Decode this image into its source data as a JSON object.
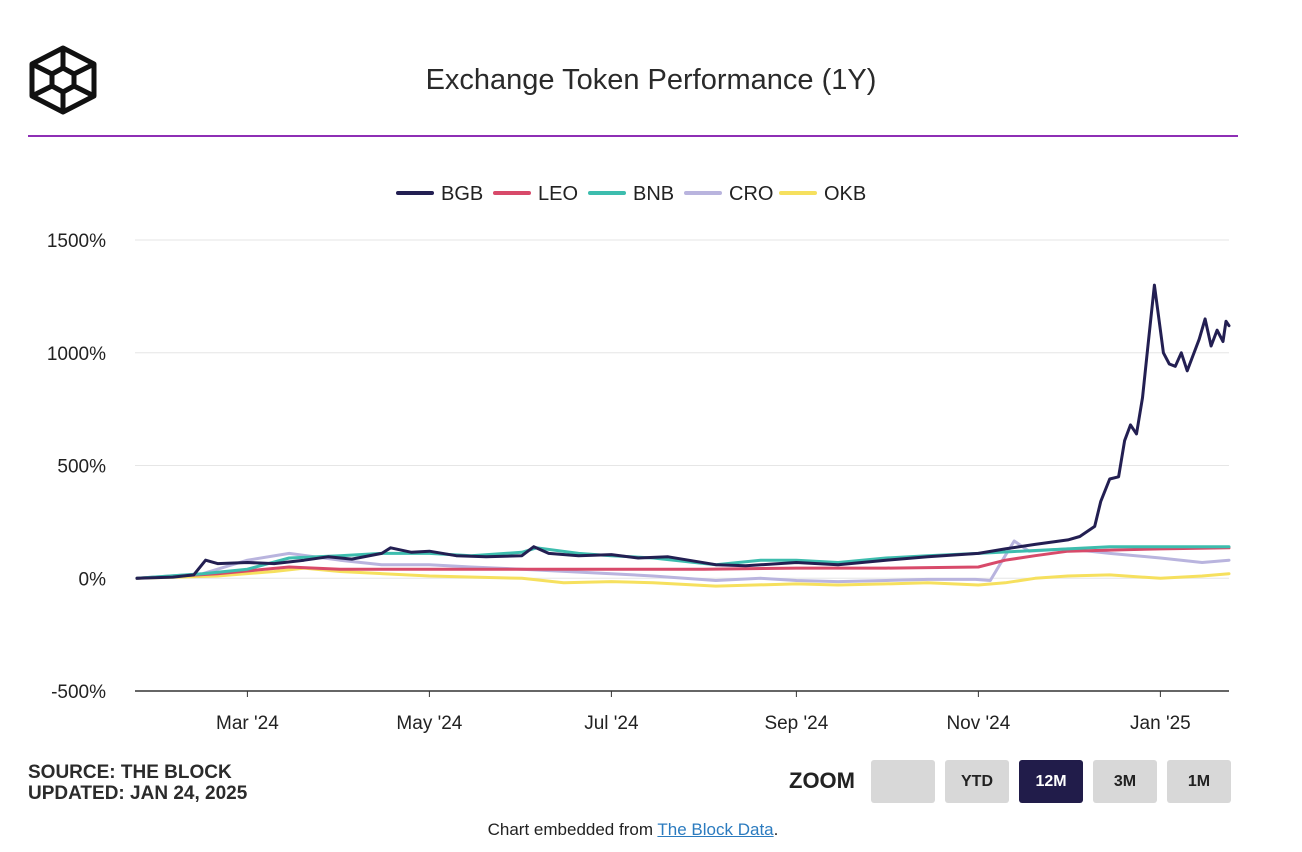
{
  "header": {
    "title": "Exchange Token Performance (1Y)"
  },
  "footer": {
    "source": "SOURCE: THE BLOCK",
    "updated": "UPDATED: JAN 24, 2025",
    "embed_prefix": "Chart embedded from ",
    "embed_link": "The Block Data",
    "embed_suffix": "."
  },
  "zoom": {
    "label": "ZOOM",
    "buttons": [
      "",
      "YTD",
      "12M",
      "3M",
      "1M"
    ],
    "active": "12M"
  },
  "colors": {
    "BGB": "#231f52",
    "LEO": "#d84a6a",
    "BNB": "#3dbdae",
    "CRO": "#b9b4de",
    "OKB": "#f6e05e",
    "accent": "#8e2fb5"
  },
  "chart_data": {
    "type": "line",
    "title": "Exchange Token Performance (1Y)",
    "xlabel": "",
    "ylabel": "",
    "ylim": [
      -500,
      1500
    ],
    "xlim": [
      "2024-01-24",
      "2025-01-24"
    ],
    "yticks": [
      "1500%",
      "1000%",
      "500%",
      "0%",
      "-500%"
    ],
    "ytick_values": [
      1500,
      1000,
      500,
      0,
      -500
    ],
    "xticks": [
      "Mar '24",
      "May '24",
      "Jul '24",
      "Sep '24",
      "Nov '24",
      "Jan '25"
    ],
    "xtick_dates": [
      "2024-03-01",
      "2024-05-01",
      "2024-07-01",
      "2024-09-01",
      "2024-11-01",
      "2025-01-01"
    ],
    "grid": true,
    "legend": "top-center",
    "series": [
      {
        "name": "BGB",
        "points": [
          [
            "2024-01-24",
            0
          ],
          [
            "2024-02-05",
            5
          ],
          [
            "2024-02-12",
            15
          ],
          [
            "2024-02-16",
            80
          ],
          [
            "2024-02-20",
            65
          ],
          [
            "2024-03-01",
            70
          ],
          [
            "2024-03-10",
            65
          ],
          [
            "2024-03-20",
            80
          ],
          [
            "2024-03-28",
            95
          ],
          [
            "2024-04-05",
            85
          ],
          [
            "2024-04-15",
            110
          ],
          [
            "2024-04-18",
            135
          ],
          [
            "2024-04-25",
            115
          ],
          [
            "2024-05-01",
            120
          ],
          [
            "2024-05-10",
            100
          ],
          [
            "2024-05-20",
            95
          ],
          [
            "2024-06-01",
            100
          ],
          [
            "2024-06-05",
            140
          ],
          [
            "2024-06-10",
            110
          ],
          [
            "2024-06-20",
            100
          ],
          [
            "2024-07-01",
            105
          ],
          [
            "2024-07-10",
            90
          ],
          [
            "2024-07-20",
            95
          ],
          [
            "2024-08-05",
            60
          ],
          [
            "2024-08-15",
            55
          ],
          [
            "2024-09-01",
            70
          ],
          [
            "2024-09-15",
            60
          ],
          [
            "2024-10-01",
            80
          ],
          [
            "2024-10-15",
            95
          ],
          [
            "2024-11-01",
            110
          ],
          [
            "2024-11-10",
            130
          ],
          [
            "2024-11-20",
            150
          ],
          [
            "2024-12-01",
            170
          ],
          [
            "2024-12-05",
            185
          ],
          [
            "2024-12-10",
            230
          ],
          [
            "2024-12-12",
            340
          ],
          [
            "2024-12-15",
            440
          ],
          [
            "2024-12-18",
            450
          ],
          [
            "2024-12-20",
            610
          ],
          [
            "2024-12-22",
            680
          ],
          [
            "2024-12-24",
            640
          ],
          [
            "2024-12-26",
            800
          ],
          [
            "2024-12-28",
            1050
          ],
          [
            "2024-12-30",
            1300
          ],
          [
            "2025-01-01",
            1100
          ],
          [
            "2025-01-02",
            1000
          ],
          [
            "2025-01-04",
            950
          ],
          [
            "2025-01-06",
            940
          ],
          [
            "2025-01-08",
            1000
          ],
          [
            "2025-01-10",
            920
          ],
          [
            "2025-01-12",
            990
          ],
          [
            "2025-01-14",
            1060
          ],
          [
            "2025-01-16",
            1150
          ],
          [
            "2025-01-18",
            1030
          ],
          [
            "2025-01-20",
            1100
          ],
          [
            "2025-01-22",
            1050
          ],
          [
            "2025-01-23",
            1140
          ],
          [
            "2025-01-24",
            1120
          ]
        ]
      },
      {
        "name": "LEO",
        "points": [
          [
            "2024-01-24",
            0
          ],
          [
            "2024-02-20",
            20
          ],
          [
            "2024-03-15",
            50
          ],
          [
            "2024-04-01",
            40
          ],
          [
            "2024-05-01",
            40
          ],
          [
            "2024-06-01",
            40
          ],
          [
            "2024-07-01",
            40
          ],
          [
            "2024-08-01",
            40
          ],
          [
            "2024-09-01",
            45
          ],
          [
            "2024-10-01",
            45
          ],
          [
            "2024-11-01",
            50
          ],
          [
            "2024-11-10",
            80
          ],
          [
            "2024-11-20",
            100
          ],
          [
            "2024-12-01",
            120
          ],
          [
            "2024-12-15",
            125
          ],
          [
            "2025-01-01",
            130
          ],
          [
            "2025-01-24",
            135
          ]
        ]
      },
      {
        "name": "BNB",
        "points": [
          [
            "2024-01-24",
            0
          ],
          [
            "2024-02-15",
            20
          ],
          [
            "2024-03-01",
            40
          ],
          [
            "2024-03-15",
            90
          ],
          [
            "2024-04-01",
            100
          ],
          [
            "2024-04-15",
            110
          ],
          [
            "2024-05-01",
            110
          ],
          [
            "2024-05-15",
            100
          ],
          [
            "2024-06-01",
            115
          ],
          [
            "2024-06-06",
            135
          ],
          [
            "2024-06-20",
            110
          ],
          [
            "2024-07-01",
            100
          ],
          [
            "2024-07-15",
            90
          ],
          [
            "2024-08-05",
            60
          ],
          [
            "2024-08-20",
            80
          ],
          [
            "2024-09-01",
            80
          ],
          [
            "2024-09-15",
            70
          ],
          [
            "2024-10-01",
            90
          ],
          [
            "2024-10-15",
            100
          ],
          [
            "2024-11-01",
            110
          ],
          [
            "2024-11-15",
            120
          ],
          [
            "2024-12-01",
            130
          ],
          [
            "2024-12-15",
            140
          ],
          [
            "2025-01-01",
            140
          ],
          [
            "2025-01-24",
            140
          ]
        ]
      },
      {
        "name": "CRO",
        "points": [
          [
            "2024-01-24",
            0
          ],
          [
            "2024-02-15",
            20
          ],
          [
            "2024-03-01",
            80
          ],
          [
            "2024-03-15",
            110
          ],
          [
            "2024-04-01",
            80
          ],
          [
            "2024-04-15",
            60
          ],
          [
            "2024-05-01",
            60
          ],
          [
            "2024-05-15",
            50
          ],
          [
            "2024-06-01",
            40
          ],
          [
            "2024-07-01",
            20
          ],
          [
            "2024-07-15",
            10
          ],
          [
            "2024-08-05",
            -10
          ],
          [
            "2024-08-20",
            0
          ],
          [
            "2024-09-01",
            -10
          ],
          [
            "2024-09-15",
            -15
          ],
          [
            "2024-10-01",
            -10
          ],
          [
            "2024-10-15",
            -5
          ],
          [
            "2024-10-31",
            -5
          ],
          [
            "2024-11-05",
            -10
          ],
          [
            "2024-11-10",
            100
          ],
          [
            "2024-11-13",
            165
          ],
          [
            "2024-11-18",
            120
          ],
          [
            "2024-12-01",
            130
          ],
          [
            "2024-12-15",
            110
          ],
          [
            "2025-01-01",
            90
          ],
          [
            "2025-01-15",
            70
          ],
          [
            "2025-01-24",
            80
          ]
        ]
      },
      {
        "name": "OKB",
        "points": [
          [
            "2024-01-24",
            0
          ],
          [
            "2024-02-20",
            10
          ],
          [
            "2024-03-10",
            30
          ],
          [
            "2024-03-20",
            45
          ],
          [
            "2024-04-01",
            30
          ],
          [
            "2024-05-01",
            10
          ],
          [
            "2024-06-01",
            0
          ],
          [
            "2024-06-15",
            -20
          ],
          [
            "2024-07-01",
            -15
          ],
          [
            "2024-07-15",
            -20
          ],
          [
            "2024-08-05",
            -35
          ],
          [
            "2024-09-01",
            -25
          ],
          [
            "2024-09-15",
            -30
          ],
          [
            "2024-10-01",
            -25
          ],
          [
            "2024-10-15",
            -20
          ],
          [
            "2024-11-01",
            -30
          ],
          [
            "2024-11-10",
            -20
          ],
          [
            "2024-11-20",
            0
          ],
          [
            "2024-12-01",
            10
          ],
          [
            "2024-12-15",
            15
          ],
          [
            "2025-01-01",
            0
          ],
          [
            "2025-01-15",
            10
          ],
          [
            "2025-01-24",
            20
          ]
        ]
      }
    ]
  }
}
